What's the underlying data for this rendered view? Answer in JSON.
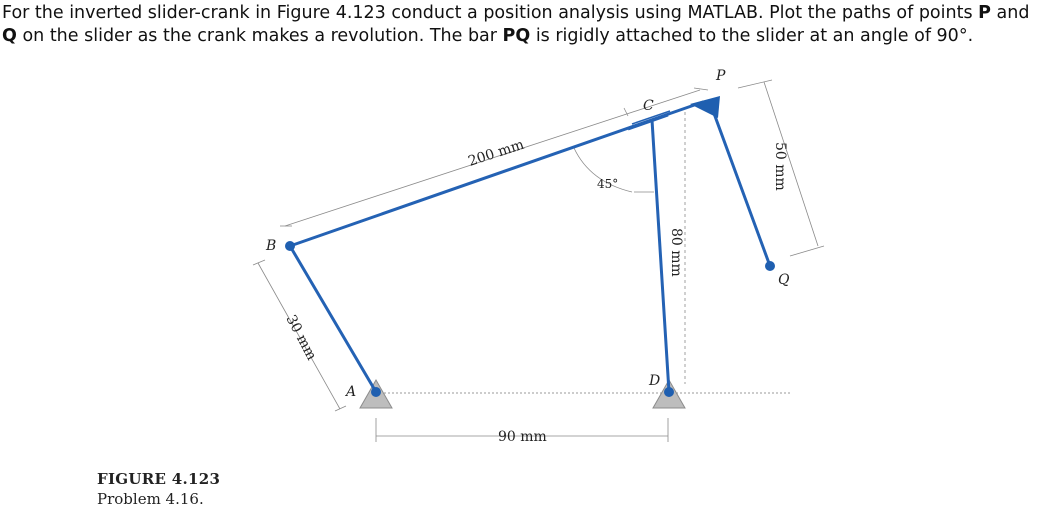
{
  "problem": {
    "part1": "For the inverted slider-crank in Figure 4.123 conduct a position analysis using MATLAB. Plot the paths of points ",
    "point_p": "P",
    "part2": " and ",
    "point_q": "Q",
    "part3": " on the slider as the crank makes a revolution. The bar ",
    "bar_pq": "PQ",
    "part4": " is rigidly attached to the slider at an angle of 90°."
  },
  "figure": {
    "number": "FIGURE 4.123",
    "caption": "Problem 4.16.",
    "labels": {
      "a": "A",
      "b": "B",
      "c": "C",
      "d": "D",
      "p": "P",
      "q": "Q"
    },
    "dimensions": {
      "coupler": "200 mm",
      "crank": "30 mm",
      "ground": "90 mm",
      "rocker": "80 mm",
      "bar": "50 mm",
      "angle": "45°"
    },
    "colors": {
      "link": "#2462b4",
      "joint": "#1f5fb0",
      "ground": "#bdbdbd",
      "dim_line": "#888888"
    }
  }
}
